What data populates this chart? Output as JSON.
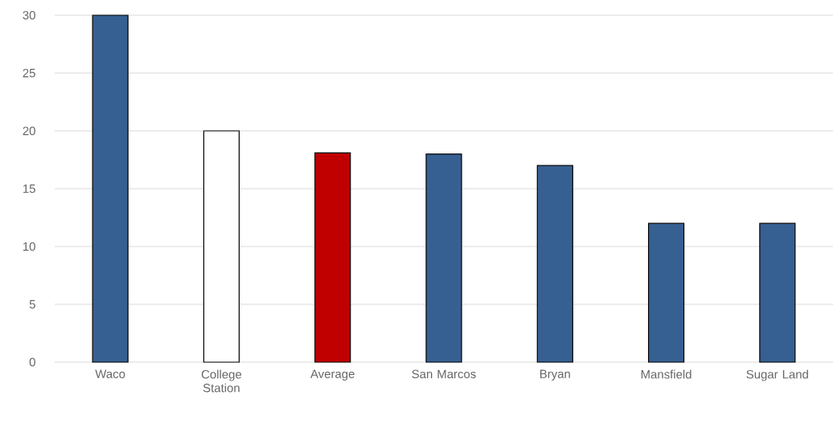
{
  "chart_data": {
    "type": "bar",
    "categories": [
      "Waco",
      "College Station",
      "Average",
      "San Marcos",
      "Bryan",
      "Mansfield",
      "Sugar Land"
    ],
    "values": [
      30,
      20,
      18.1,
      18,
      17,
      12,
      12
    ],
    "colors": [
      "#376092",
      "#ffffff",
      "#c00000",
      "#376092",
      "#376092",
      "#376092",
      "#376092"
    ],
    "ylim": [
      0,
      30
    ],
    "yticks": [
      0,
      5,
      10,
      15,
      20,
      25,
      30
    ],
    "grid": "y"
  }
}
